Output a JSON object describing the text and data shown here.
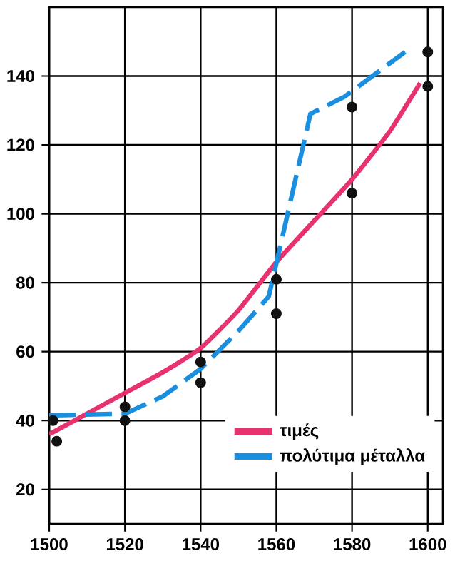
{
  "chart_data": {
    "type": "line",
    "xlim": [
      1500,
      1604
    ],
    "ylim": [
      10,
      160
    ],
    "xticks": [
      1500,
      1520,
      1540,
      1560,
      1580,
      1600
    ],
    "yticks": [
      20,
      40,
      60,
      80,
      100,
      120,
      140
    ],
    "grid": true,
    "legend": "bottom right",
    "series": [
      {
        "name": "τιμές",
        "color": "#e8326e",
        "line_style": "solid",
        "marker": "none",
        "x": [
          1500,
          1510,
          1520,
          1530,
          1540,
          1550,
          1560,
          1570,
          1580,
          1590,
          1598
        ],
        "values": [
          36,
          42,
          48,
          54,
          61,
          72,
          86,
          98,
          110,
          124,
          138
        ]
      },
      {
        "name": "πολύτιμα μέταλλα",
        "color": "#1a8fe0",
        "line_style": "dashed",
        "marker": "none",
        "x": [
          1500,
          1520,
          1530,
          1540,
          1550,
          1558,
          1569,
          1578,
          1594
        ],
        "values": [
          41.5,
          42,
          47,
          55,
          66,
          76,
          129,
          134,
          147
        ]
      },
      {
        "type": "scatter",
        "color": "#111111",
        "marker": "circle",
        "x": [
          1501,
          1502,
          1520,
          1520,
          1540,
          1540,
          1560,
          1560,
          1580,
          1580,
          1600,
          1600
        ],
        "values": [
          40,
          34,
          44,
          40,
          57,
          51,
          81,
          71,
          131,
          106,
          147,
          137
        ]
      }
    ]
  }
}
